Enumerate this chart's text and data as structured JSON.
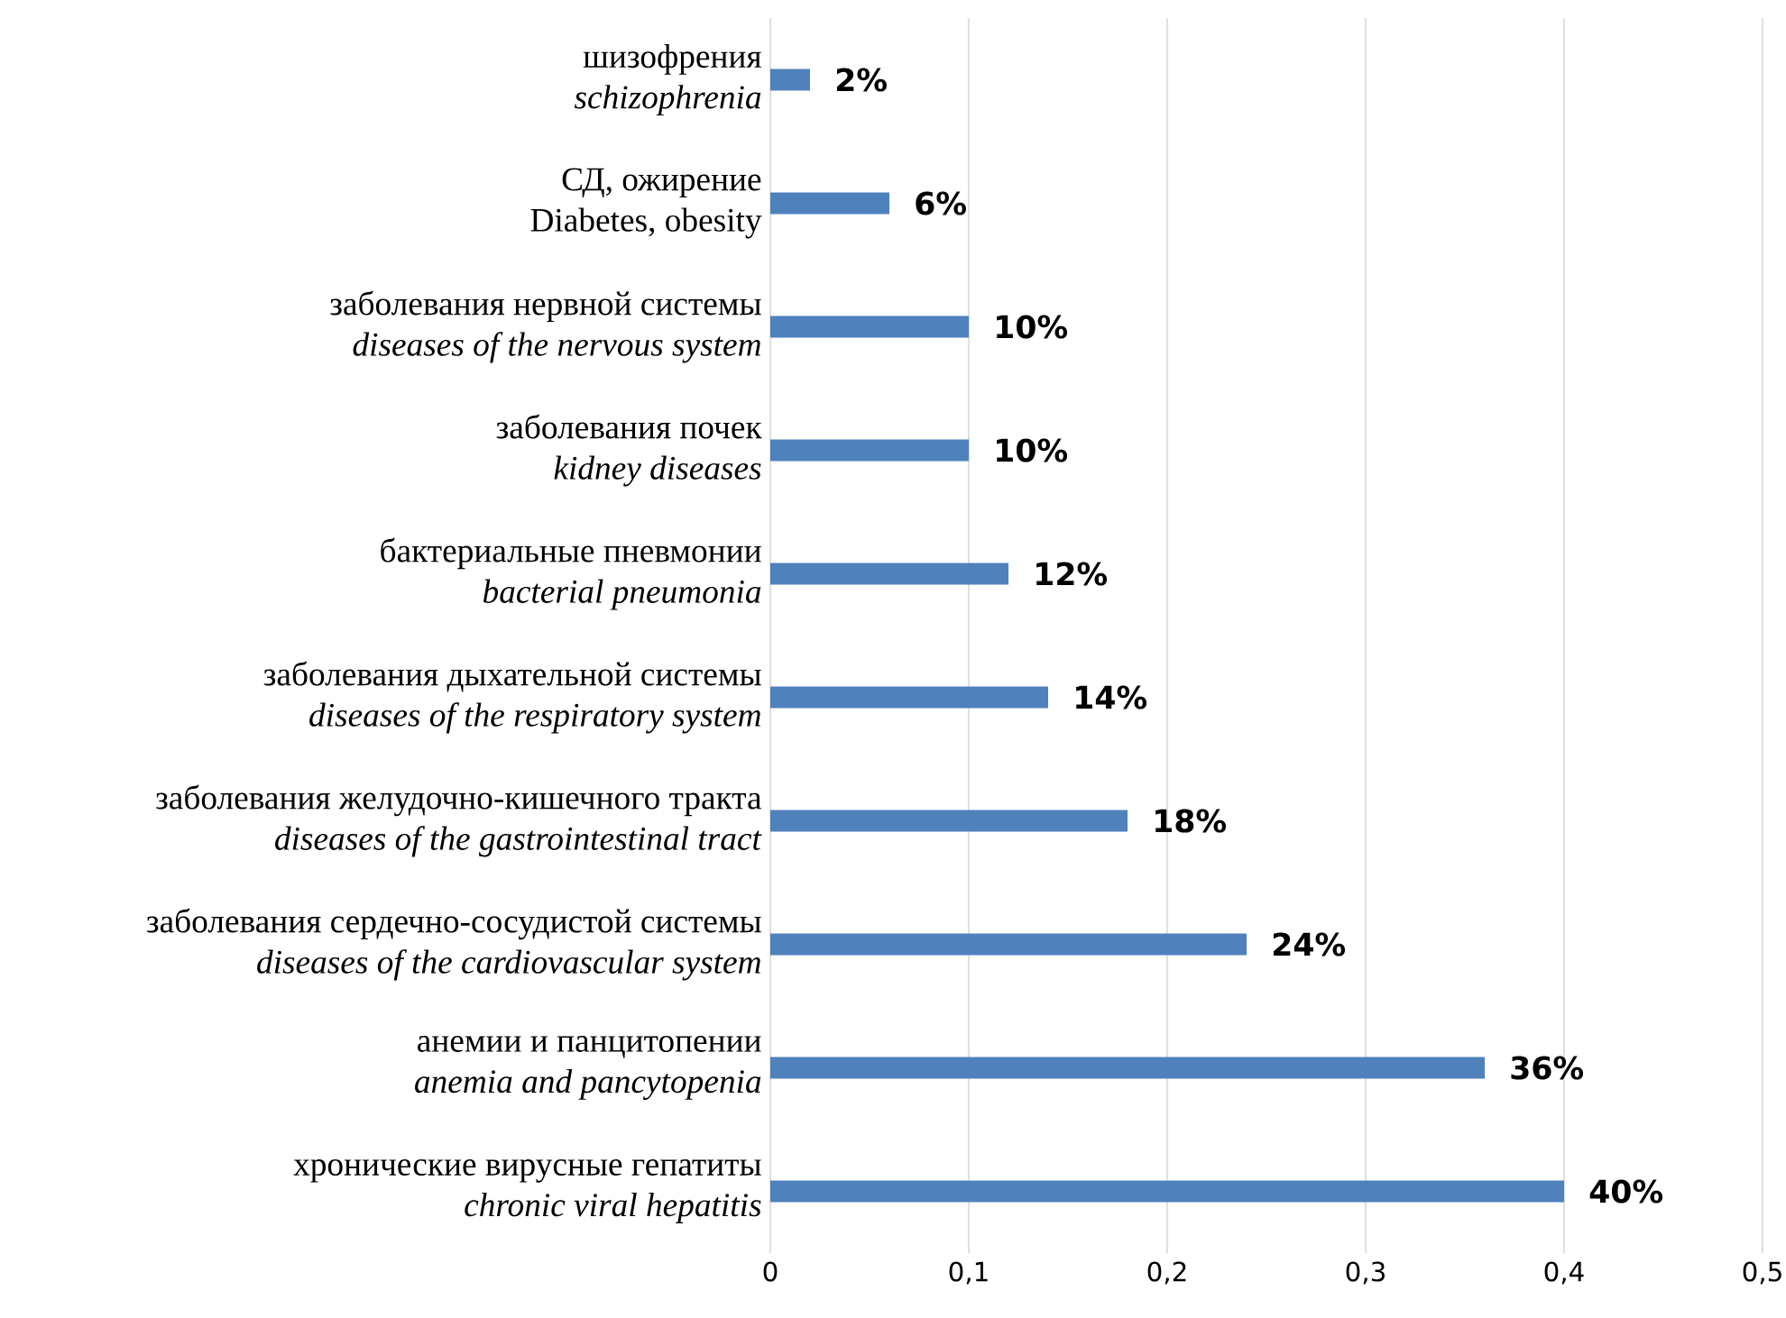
{
  "chart_data": {
    "type": "bar",
    "orientation": "horizontal",
    "categories": [
      "шизофрения\n*schizophrenia*",
      "СД, ожирение\nDiabetes, obesity",
      "заболевания нервной системы\n*diseases of the nervous system*",
      "заболевания почек\n*kidney diseases*",
      "бактериальные пневмонии\n*bacterial pneumonia*",
      "заболевания дыхательной системы\n*diseases of the respiratory system*",
      "заболевания желудочно-кишечного тракта\n*diseases of the gastrointestinal tract*",
      "заболевания сердечно-сосудистой системы\n*diseases of the cardiovascular system*",
      "анемии и панцитопении\n*anemia and pancytopenia*",
      "хронические вирусные гепатиты\n*chronic viral hepatitis*"
    ],
    "values": [
      0.02,
      0.06,
      0.1,
      0.1,
      0.12,
      0.14,
      0.18,
      0.24,
      0.36,
      0.4
    ],
    "value_labels": [
      "2%",
      "6%",
      "10%",
      "10%",
      "12%",
      "14%",
      "18%",
      "24%",
      "36%",
      "40%"
    ],
    "color": "#4f81bd",
    "xlim": [
      0,
      0.5
    ],
    "xticks": [
      0,
      {
        "value": 0.1,
        "label": "0,1"
      },
      {
        "value": 0.2,
        "label": "0,2"
      },
      {
        "value": 0.3,
        "label": "0,3"
      },
      {
        "value": 0.4,
        "label": "0,4"
      },
      {
        "value": 0.5,
        "label": "0,5"
      }
    ],
    "grid": "x"
  }
}
